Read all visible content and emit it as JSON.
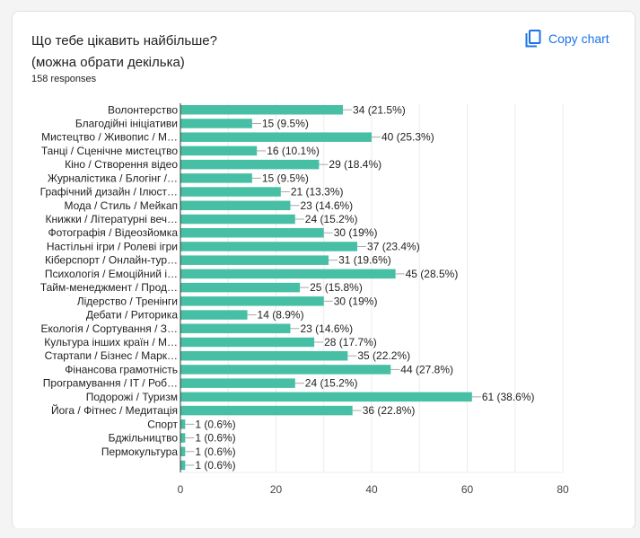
{
  "card": {
    "title_line1": "Що тебе цікавить найбільше?",
    "title_line2": "(можна обрати декілька)",
    "responses": "158 responses",
    "copy_button": {
      "label": "Copy chart",
      "icon": "copy-icon"
    }
  },
  "colors": {
    "bar": "#47bfa5",
    "accent": "#1a73e8",
    "grid": "#ececec",
    "axis": "#333333",
    "leader": "#a8a8a8"
  },
  "chart_data": {
    "type": "bar",
    "orientation": "horizontal",
    "title": "Що тебе цікавить найбільше? (можна обрати декілька)",
    "xlabel": "",
    "ylabel": "",
    "xlim": [
      0,
      80
    ],
    "x_ticks": [
      0,
      20,
      40,
      60,
      80
    ],
    "grid": true,
    "grid_step": 10,
    "categories": [
      "Волонтерство",
      "Благодійні ініціативи",
      "Мистецтво / Живопис / М…",
      "Танці / Сценічне мистецтво",
      "Кіно / Створення відео",
      "Журналістика / Блогінг /…",
      "Графічний дизайн / Ілюст…",
      "Мода / Стиль / Мейкап",
      "Книжки / Літературні веч…",
      "Фотографія / Відеозйомка",
      "Настільні ігри / Ролеві ігри",
      "Кіберспорт / Онлайн-тур…",
      "Психологія / Емоційний і…",
      "Тайм-менеджмент / Прод…",
      "Лідерство / Тренінги",
      "Дебати / Риторика",
      "Екологія / Сортування / З…",
      "Культура інших країн / М…",
      "Стартапи / Бізнес / Марк…",
      "Фінансова грамотність",
      "Програмування / IT / Роб…",
      "Подорожі / Туризм",
      "Йога / Фітнес / Медитація",
      "Спорт",
      "Бджільництво",
      "Пермокультура",
      ""
    ],
    "values": [
      34,
      15,
      40,
      16,
      29,
      15,
      21,
      23,
      24,
      30,
      37,
      31,
      45,
      25,
      30,
      14,
      23,
      28,
      35,
      44,
      24,
      61,
      36,
      1,
      1,
      1,
      1
    ],
    "data_labels": [
      "34 (21.5%)",
      "15 (9.5%)",
      "40 (25.3%)",
      "16 (10.1%)",
      "29 (18.4%)",
      "15 (9.5%)",
      "21 (13.3%)",
      "23 (14.6%)",
      "24 (15.2%)",
      "30 (19%)",
      "37 (23.4%)",
      "31 (19.6%)",
      "45 (28.5%)",
      "25 (15.8%)",
      "30 (19%)",
      "14 (8.9%)",
      "23 (14.6%)",
      "28 (17.7%)",
      "35 (22.2%)",
      "44 (27.8%)",
      "24 (15.2%)",
      "61 (38.6%)",
      "36 (22.8%)",
      "1 (0.6%)",
      "1 (0.6%)",
      "1 (0.6%)",
      "1 (0.6%)"
    ],
    "total_responses": 158
  }
}
